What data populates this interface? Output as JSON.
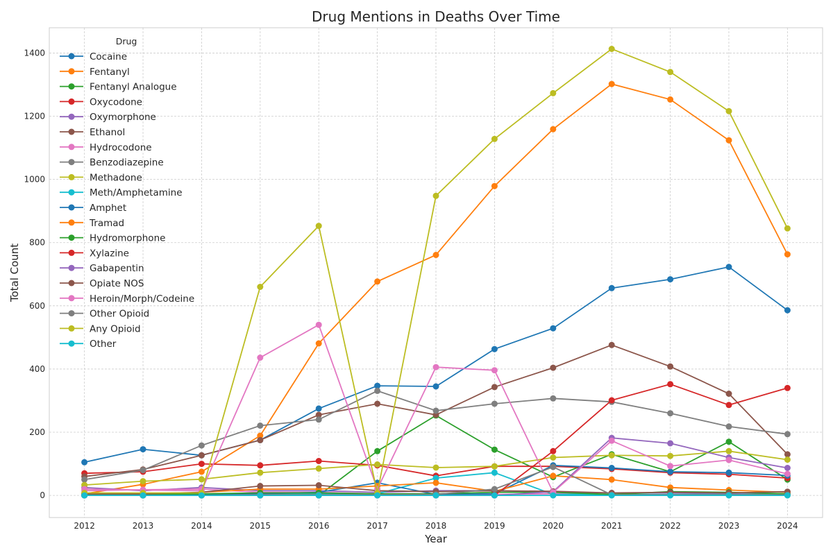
{
  "chart_data": {
    "type": "line",
    "title": "Drug Mentions in Deaths Over Time",
    "xlabel": "Year",
    "ylabel": "Total Count",
    "legend_title": "Drug",
    "legend_position": "top-left",
    "grid": true,
    "xlim": [
      2011.4,
      2024.6
    ],
    "ylim": [
      -70,
      1480
    ],
    "yticks": [
      0,
      200,
      400,
      600,
      800,
      1000,
      1200,
      1400
    ],
    "x": [
      2012,
      2013,
      2014,
      2015,
      2016,
      2017,
      2018,
      2019,
      2020,
      2021,
      2022,
      2023,
      2024
    ],
    "series": [
      {
        "name": "Cocaine",
        "color": "#1f77b4",
        "values": [
          105,
          146,
          127,
          175,
          275,
          347,
          345,
          463,
          529,
          656,
          684,
          723,
          586
        ]
      },
      {
        "name": "Fentanyl",
        "color": "#ff7f0e",
        "values": [
          5,
          35,
          75,
          189,
          481,
          677,
          761,
          979,
          1159,
          1302,
          1253,
          1124,
          763
        ]
      },
      {
        "name": "Fentanyl Analogue",
        "color": "#2ca02c",
        "values": [
          0,
          0,
          0,
          0,
          0,
          140,
          253,
          145,
          58,
          130,
          75,
          170,
          50
        ]
      },
      {
        "name": "Oxycodone",
        "color": "#d62728",
        "values": [
          70,
          75,
          100,
          95,
          109,
          95,
          62,
          92,
          92,
          84,
          72,
          67,
          55
        ]
      },
      {
        "name": "Oxymorphone",
        "color": "#9467bd",
        "values": [
          25,
          15,
          25,
          15,
          15,
          10,
          15,
          15,
          10,
          8,
          8,
          5,
          3
        ]
      },
      {
        "name": "Ethanol",
        "color": "#8c564b",
        "values": [
          60,
          82,
          127,
          175,
          255,
          290,
          255,
          343,
          404,
          476,
          408,
          322,
          130
        ]
      },
      {
        "name": "Hydrocodone",
        "color": "#e377c2",
        "values": [
          15,
          18,
          20,
          10,
          10,
          5,
          5,
          3,
          5,
          3,
          2,
          2,
          2
        ]
      },
      {
        "name": "Benzodiazepine",
        "color": "#7f7f7f",
        "values": [
          50,
          80,
          158,
          221,
          240,
          331,
          268,
          290,
          307,
          296,
          260,
          218,
          194
        ]
      },
      {
        "name": "Methadone",
        "color": "#bcbd22",
        "values": [
          33,
          45,
          51,
          72,
          85,
          98,
          88,
          92,
          120,
          127,
          125,
          140,
          113
        ]
      },
      {
        "name": "Meth/Amphetamine",
        "color": "#17becf",
        "values": [
          3,
          3,
          3,
          5,
          5,
          5,
          55,
          72,
          3,
          3,
          3,
          3,
          3
        ]
      },
      {
        "name": "Amphet",
        "color": "#1f77b4",
        "values": [
          0,
          0,
          2,
          5,
          10,
          40,
          3,
          5,
          95,
          87,
          75,
          72,
          63
        ]
      },
      {
        "name": "Tramad",
        "color": "#ff7f0e",
        "values": [
          2,
          2,
          10,
          20,
          20,
          30,
          40,
          13,
          62,
          50,
          25,
          17,
          10
        ]
      },
      {
        "name": "Hydromorphone",
        "color": "#2ca02c",
        "values": [
          3,
          3,
          5,
          8,
          8,
          5,
          5,
          10,
          10,
          3,
          12,
          10,
          5
        ]
      },
      {
        "name": "Xylazine",
        "color": "#d62728",
        "values": [
          0,
          0,
          0,
          0,
          0,
          0,
          0,
          0,
          140,
          301,
          352,
          286,
          340
        ]
      },
      {
        "name": "Gabapentin",
        "color": "#9467bd",
        "values": [
          0,
          0,
          0,
          0,
          0,
          0,
          0,
          0,
          12,
          182,
          165,
          120,
          87
        ]
      },
      {
        "name": "Opiate NOS",
        "color": "#8c564b",
        "values": [
          5,
          5,
          10,
          30,
          32,
          15,
          12,
          15,
          13,
          8,
          10,
          8,
          12
        ]
      },
      {
        "name": "Heroin/Morph/Codeine",
        "color": "#e377c2",
        "values": [
          20,
          17,
          15,
          436,
          540,
          20,
          406,
          396,
          10,
          173,
          93,
          112,
          68
        ]
      },
      {
        "name": "Other Opioid",
        "color": "#7f7f7f",
        "values": [
          0,
          0,
          0,
          2,
          2,
          2,
          3,
          20,
          90,
          2,
          2,
          2,
          2
        ]
      },
      {
        "name": "Any Opioid",
        "color": "#bcbd22",
        "values": [
          8,
          8,
          8,
          660,
          853,
          8,
          948,
          1128,
          1273,
          1413,
          1340,
          1216,
          845
        ]
      },
      {
        "name": "Other",
        "color": "#17becf",
        "values": [
          0,
          0,
          0,
          0,
          0,
          0,
          0,
          0,
          0,
          0,
          0,
          0,
          0
        ]
      }
    ]
  }
}
